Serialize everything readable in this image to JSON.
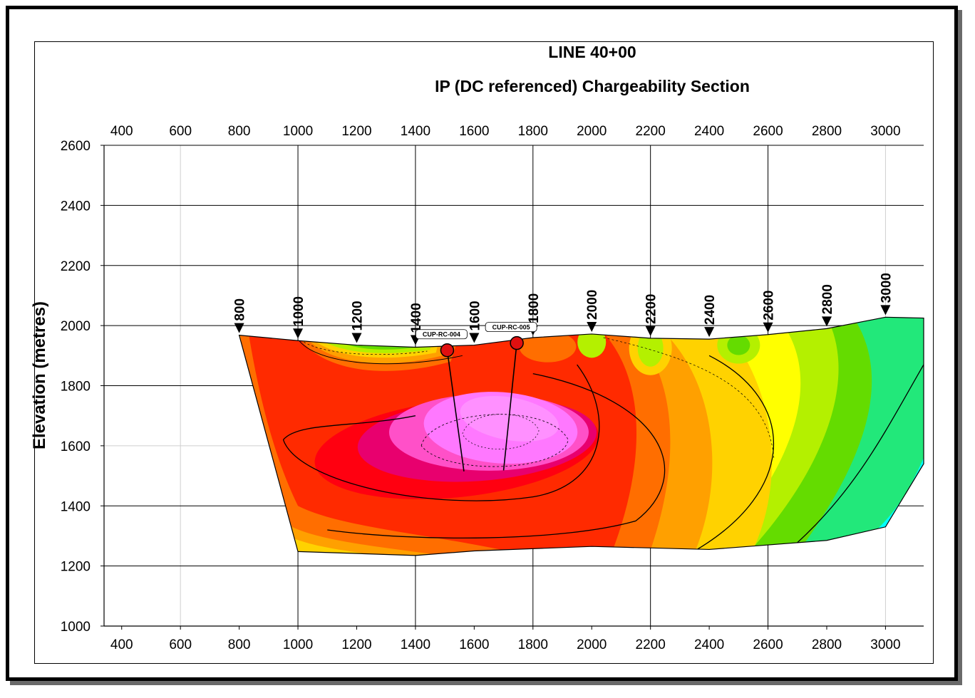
{
  "chart_data": {
    "type": "heatmap",
    "title": "LINE 40+00",
    "subtitle": "IP (DC referenced) Chargeability Section",
    "xlabel": "",
    "ylabel": "Elevation (metres)",
    "xlim": [
      340,
      3130
    ],
    "ylim": [
      1000,
      2600
    ],
    "x_ticks": [
      400,
      600,
      800,
      1000,
      1200,
      1400,
      1600,
      1800,
      2000,
      2200,
      2400,
      2600,
      2800,
      3000
    ],
    "y_ticks": [
      1000,
      1200,
      1400,
      1600,
      1800,
      2000,
      2200,
      2400,
      2600
    ],
    "major_grid_x": [
      1000,
      1400,
      1800,
      2200,
      2600
    ],
    "minor_grid_x": [
      600,
      3000
    ],
    "major_grid_y": [
      1000,
      1200,
      1400,
      1800,
      2200,
      2400,
      2600
    ],
    "grid": true,
    "colors": [
      "#00ffff",
      "#22e87a",
      "#64dc00",
      "#b4f000",
      "#ffff00",
      "#ffd200",
      "#ffa000",
      "#ff6e00",
      "#ff2a00",
      "#ff0010",
      "#e8006e",
      "#ff50c8",
      "#ff78ff"
    ],
    "topography": [
      {
        "x": 800,
        "y": 1968
      },
      {
        "x": 1000,
        "y": 1950
      },
      {
        "x": 1200,
        "y": 1935
      },
      {
        "x": 1400,
        "y": 1928
      },
      {
        "x": 1600,
        "y": 1935
      },
      {
        "x": 1800,
        "y": 1960
      },
      {
        "x": 2000,
        "y": 1972
      },
      {
        "x": 2200,
        "y": 1958
      },
      {
        "x": 2400,
        "y": 1955
      },
      {
        "x": 2600,
        "y": 1970
      },
      {
        "x": 2800,
        "y": 1990
      },
      {
        "x": 3000,
        "y": 2028
      },
      {
        "x": 3130,
        "y": 2025
      }
    ],
    "stations": [
      {
        "x": 800,
        "label": "800"
      },
      {
        "x": 1000,
        "label": "1000"
      },
      {
        "x": 1200,
        "label": "1200"
      },
      {
        "x": 1400,
        "label": "1400"
      },
      {
        "x": 1600,
        "label": "1600"
      },
      {
        "x": 1800,
        "label": "1800"
      },
      {
        "x": 2000,
        "label": "2000"
      },
      {
        "x": 2200,
        "label": "2200"
      },
      {
        "x": 2400,
        "label": "2400"
      },
      {
        "x": 2600,
        "label": "2600"
      },
      {
        "x": 2800,
        "label": "2800"
      },
      {
        "x": 3000,
        "label": "3000"
      }
    ],
    "drillholes": [
      {
        "name": "CUP-RC-004",
        "collar": {
          "x": 1508,
          "y": 1918
        },
        "end": {
          "x": 1565,
          "y": 1515
        }
      },
      {
        "name": "CUP-RC-005",
        "collar": {
          "x": 1745,
          "y": 1942
        },
        "end": {
          "x": 1700,
          "y": 1518
        }
      }
    ],
    "anomaly_high": {
      "x": 1680,
      "y": 1640
    },
    "anomaly_low": {
      "x": 3050,
      "y": 1340
    }
  }
}
